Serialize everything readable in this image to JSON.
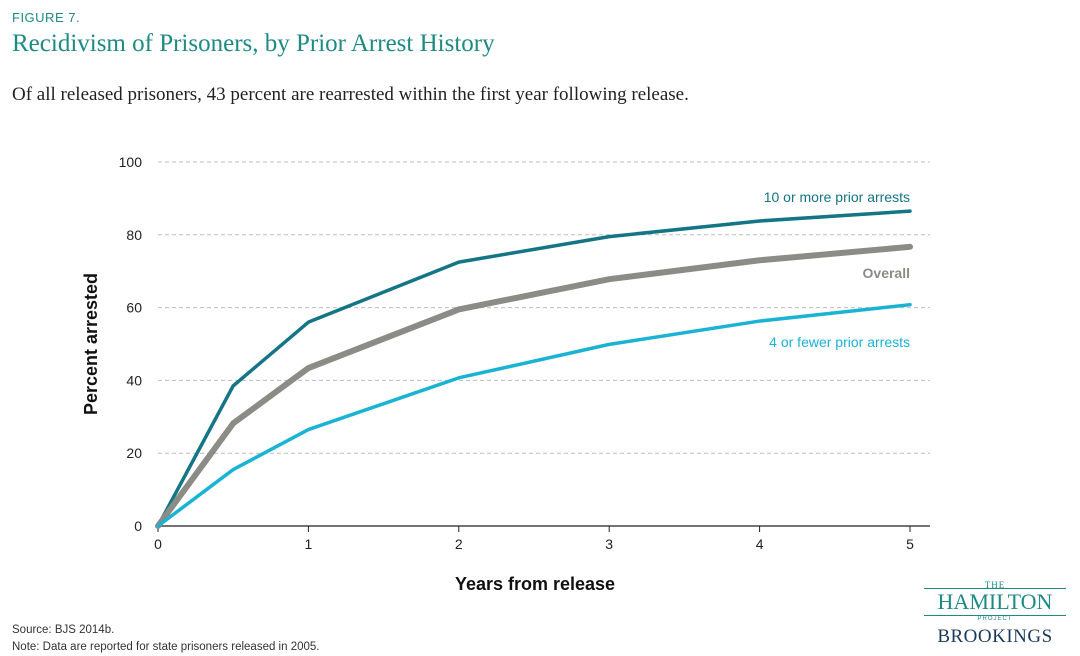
{
  "figure_label": "FIGURE 7.",
  "title": "Recidivism of Prisoners, by Prior Arrest History",
  "subtitle": "Of all released prisoners, 43 percent are rearrested within the first year following release.",
  "source": "Source: BJS 2014b.",
  "note": "Note: Data are reported for state prisoners released in 2005.",
  "logo": {
    "the": "THE",
    "hamilton": "HAMILTON",
    "project": "PROJECT",
    "brookings": "BROOKINGS"
  },
  "chart_data": {
    "type": "line",
    "xlabel": "Years from release",
    "ylabel": "Percent arrested",
    "xlim": [
      0,
      5
    ],
    "ylim": [
      0,
      100
    ],
    "xticks": [
      0,
      1,
      2,
      3,
      4,
      5
    ],
    "yticks": [
      0,
      20,
      40,
      60,
      80,
      100
    ],
    "grid": "horizontal dashed",
    "x": [
      0,
      0.5,
      1,
      2,
      3,
      4,
      5
    ],
    "series": [
      {
        "name": "10 or more prior arrests",
        "values": [
          0,
          38.5,
          56,
          72.5,
          79.5,
          83.8,
          86.5
        ],
        "color": "#137585"
      },
      {
        "name": "Overall",
        "values": [
          0,
          28.2,
          43.4,
          59.5,
          67.8,
          73.0,
          76.7
        ],
        "color": "#8c8c86"
      },
      {
        "name": "4 or fewer prior arrests",
        "values": [
          0,
          15.5,
          26.5,
          40.7,
          49.9,
          56.3,
          60.8
        ],
        "color": "#1ab3d4"
      }
    ]
  }
}
